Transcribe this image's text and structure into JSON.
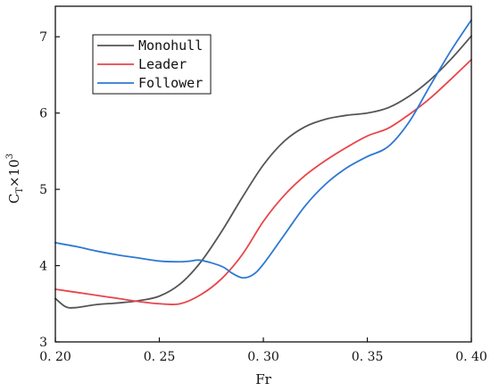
{
  "chart_data": {
    "type": "line",
    "xlabel": "Fr",
    "ylabel": {
      "main": "C",
      "sub": "T",
      "mid": "×10",
      "sup": "3"
    },
    "xlim": [
      0.2,
      0.4
    ],
    "ylim": [
      3,
      7.4
    ],
    "xticks": [
      0.2,
      0.25,
      0.3,
      0.35,
      0.4
    ],
    "xtick_labels": [
      "0. 20",
      "0. 25",
      "0. 30",
      "0. 35",
      "0. 40"
    ],
    "yticks": [
      3,
      4,
      5,
      6,
      7
    ],
    "ytick_labels": [
      "3",
      "4",
      "5",
      "6",
      "7"
    ],
    "grid": false,
    "legend_position": "top-left",
    "series": [
      {
        "name": "Monohull",
        "color": "#555555",
        "x": [
          0.2,
          0.205,
          0.21,
          0.22,
          0.23,
          0.24,
          0.25,
          0.26,
          0.27,
          0.28,
          0.29,
          0.3,
          0.31,
          0.32,
          0.33,
          0.34,
          0.35,
          0.36,
          0.37,
          0.38,
          0.39,
          0.4
        ],
        "y": [
          3.57,
          3.46,
          3.45,
          3.49,
          3.51,
          3.54,
          3.6,
          3.76,
          4.05,
          4.45,
          4.9,
          5.32,
          5.63,
          5.82,
          5.92,
          5.97,
          6.0,
          6.07,
          6.22,
          6.43,
          6.7,
          7.01
        ]
      },
      {
        "name": "Leader",
        "color": "#e8454a",
        "x": [
          0.2,
          0.21,
          0.22,
          0.23,
          0.24,
          0.25,
          0.26,
          0.27,
          0.28,
          0.29,
          0.3,
          0.31,
          0.32,
          0.33,
          0.34,
          0.35,
          0.36,
          0.37,
          0.38,
          0.39,
          0.4
        ],
        "y": [
          3.69,
          3.65,
          3.61,
          3.57,
          3.53,
          3.5,
          3.5,
          3.62,
          3.83,
          4.15,
          4.58,
          4.92,
          5.18,
          5.38,
          5.55,
          5.7,
          5.8,
          5.98,
          6.19,
          6.44,
          6.7
        ]
      },
      {
        "name": "Follower",
        "color": "#2e78d2",
        "x": [
          0.2,
          0.21,
          0.22,
          0.23,
          0.24,
          0.25,
          0.26,
          0.265,
          0.27,
          0.28,
          0.285,
          0.29,
          0.295,
          0.3,
          0.31,
          0.32,
          0.33,
          0.34,
          0.35,
          0.36,
          0.37,
          0.38,
          0.39,
          0.4
        ],
        "y": [
          4.3,
          4.25,
          4.19,
          4.14,
          4.1,
          4.06,
          4.05,
          4.06,
          4.07,
          3.99,
          3.9,
          3.84,
          3.88,
          4.02,
          4.4,
          4.78,
          5.07,
          5.28,
          5.43,
          5.56,
          5.88,
          6.35,
          6.81,
          7.22
        ]
      }
    ]
  }
}
